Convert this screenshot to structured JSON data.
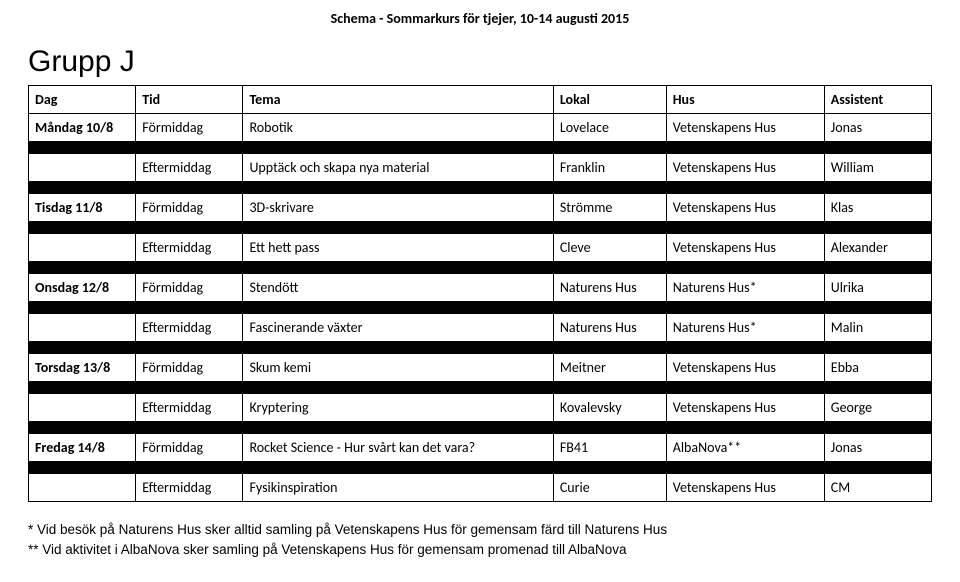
{
  "page_title": "Schema - Sommarkurs för tjejer, 10-14 augusti 2015",
  "group_title": "Grupp J",
  "columns": [
    "Dag",
    "Tid",
    "Tema",
    "Lokal",
    "Hus",
    "Assistent"
  ],
  "rows_flat": [
    {
      "dag": "Måndag 10/8",
      "tid": "Förmiddag",
      "tema": "Robotik",
      "lokal": "Lovelace",
      "hus": "Vetenskapens Hus",
      "assist": "Jonas",
      "bold": true
    },
    {
      "spacer": true
    },
    {
      "dag": "",
      "tid": "Eftermiddag",
      "tema": "Upptäck och skapa nya material",
      "lokal": "Franklin",
      "hus": "Vetenskapens Hus",
      "assist": "William",
      "bold": false
    },
    {
      "spacer": true
    },
    {
      "dag": "Tisdag 11/8",
      "tid": "Förmiddag",
      "tema": "3D-skrivare",
      "lokal": "Strömme",
      "hus": "Vetenskapens Hus",
      "assist": "Klas",
      "bold": true
    },
    {
      "spacer": true
    },
    {
      "dag": "",
      "tid": "Eftermiddag",
      "tema": "Ett hett pass",
      "lokal": "Cleve",
      "hus": "Vetenskapens Hus",
      "assist": "Alexander",
      "bold": false
    },
    {
      "spacer": true
    },
    {
      "dag": "Onsdag 12/8",
      "tid": "Förmiddag",
      "tema": "Stendött",
      "lokal": "Naturens Hus",
      "hus": "Naturens Hus*",
      "assist": "Ulrika",
      "bold": true
    },
    {
      "spacer": true
    },
    {
      "dag": "",
      "tid": "Eftermiddag",
      "tema": "Fascinerande växter",
      "lokal": "Naturens Hus",
      "hus": "Naturens Hus*",
      "assist": "Malin",
      "bold": false
    },
    {
      "spacer": true
    },
    {
      "dag": "Torsdag 13/8",
      "tid": "Förmiddag",
      "tema": "Skum kemi",
      "lokal": "Meitner",
      "hus": "Vetenskapens Hus",
      "assist": "Ebba",
      "bold": true
    },
    {
      "spacer": true
    },
    {
      "dag": "",
      "tid": "Eftermiddag",
      "tema": "Kryptering",
      "lokal": "Kovalevsky",
      "hus": "Vetenskapens Hus",
      "assist": "George",
      "bold": false
    },
    {
      "spacer": true
    },
    {
      "dag": "Fredag 14/8",
      "tid": "Förmiddag",
      "tema": "Rocket Science - Hur svårt kan det vara?",
      "lokal": "FB41",
      "hus": "AlbaNova**",
      "assist": "Jonas",
      "bold": true
    },
    {
      "spacer": true
    },
    {
      "dag": "",
      "tid": "Eftermiddag",
      "tema": "Fysikinspiration",
      "lokal": "Curie",
      "hus": "Vetenskapens Hus",
      "assist": "CM",
      "bold": false
    }
  ],
  "footnote1": "* Vid besök på Naturens Hus sker alltid samling på Vetenskapens Hus för gemensam färd till Naturens Hus",
  "footnote2": "** Vid aktivitet i AlbaNova sker samling på Vetenskapens Hus för gemensam promenad till AlbaNova"
}
